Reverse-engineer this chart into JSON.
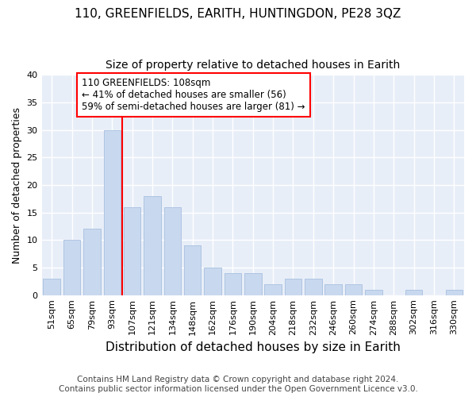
{
  "title": "110, GREENFIELDS, EARITH, HUNTINGDON, PE28 3QZ",
  "subtitle": "Size of property relative to detached houses in Earith",
  "xlabel": "Distribution of detached houses by size in Earith",
  "ylabel": "Number of detached properties",
  "bar_labels": [
    "51sqm",
    "65sqm",
    "79sqm",
    "93sqm",
    "107sqm",
    "121sqm",
    "134sqm",
    "148sqm",
    "162sqm",
    "176sqm",
    "190sqm",
    "204sqm",
    "218sqm",
    "232sqm",
    "246sqm",
    "260sqm",
    "274sqm",
    "288sqm",
    "302sqm",
    "316sqm",
    "330sqm"
  ],
  "bar_values": [
    3,
    10,
    12,
    30,
    16,
    18,
    16,
    9,
    5,
    4,
    4,
    2,
    3,
    3,
    2,
    2,
    1,
    0,
    1,
    0,
    1
  ],
  "bar_color": "#c8d8ee",
  "bar_edge_color": "#a8c0e0",
  "background_color": "#ffffff",
  "plot_bg_color": "#e8eef8",
  "grid_color": "#ffffff",
  "annotation_line1": "110 GREENFIELDS: 108sqm",
  "annotation_line2": "← 41% of detached houses are smaller (56)",
  "annotation_line3": "59% of semi-detached houses are larger (81) →",
  "footer1": "Contains HM Land Registry data © Crown copyright and database right 2024.",
  "footer2": "Contains public sector information licensed under the Open Government Licence v3.0.",
  "redline_x": 4.0,
  "ylim": [
    0,
    40
  ],
  "yticks": [
    0,
    5,
    10,
    15,
    20,
    25,
    30,
    35,
    40
  ],
  "title_fontsize": 11,
  "subtitle_fontsize": 10,
  "xlabel_fontsize": 11,
  "ylabel_fontsize": 9,
  "tick_fontsize": 8,
  "annotation_fontsize": 8.5,
  "footer_fontsize": 7.5
}
